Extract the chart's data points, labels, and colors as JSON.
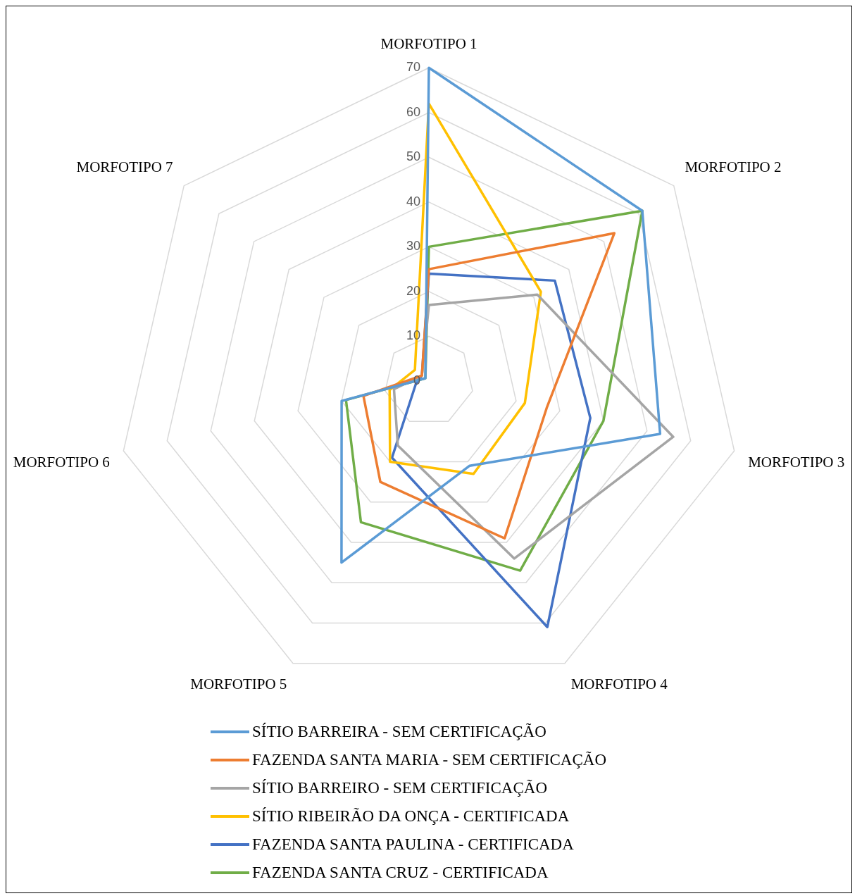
{
  "chart_data": {
    "type": "radar",
    "categories": [
      "MORFOTIPO 1",
      "MORFOTIPO 2",
      "MORFOTIPO 3",
      "MORFOTIPO 4",
      "MORFOTIPO 5",
      "MORFOTIPO 6",
      "MORFOTIPO 7"
    ],
    "ylim": [
      0,
      70
    ],
    "yticks": [
      0,
      10,
      20,
      30,
      40,
      50,
      60,
      70
    ],
    "grid": true,
    "legend": "bottom",
    "marker": "none",
    "series": [
      {
        "name": "SÍTIO BARREIRA - SEM CERTIFICAÇÃO",
        "color": "#5b9bd5",
        "values": [
          70,
          61,
          53,
          21,
          45,
          20,
          1
        ]
      },
      {
        "name": "FAZENDA SANTA MARIA - SEM CERTIFICAÇÃO",
        "color": "#ed7d31",
        "values": [
          25,
          53,
          27,
          39,
          25,
          15,
          2
        ]
      },
      {
        "name": "SÍTIO BARREIRO - SEM CERTIFICAÇÃO",
        "color": "#a5a5a5",
        "values": [
          17,
          31,
          56,
          44,
          16,
          8,
          2
        ]
      },
      {
        "name": "SÍTIO RIBEIRÃO DA ONÇA - CERTIFICADA",
        "color": "#ffc000",
        "values": [
          62,
          32,
          22,
          23,
          20,
          9,
          4
        ]
      },
      {
        "name": "FAZENDA SANTA PAULINA - CERTIFICADA",
        "color": "#4472c4",
        "values": [
          24,
          36,
          37,
          61,
          19,
          3,
          2
        ]
      },
      {
        "name": "FAZENDA SANTA CRUZ - CERTIFICADA",
        "color": "#70ad47",
        "values": [
          30,
          61,
          40,
          47,
          35,
          19,
          1
        ]
      }
    ]
  }
}
